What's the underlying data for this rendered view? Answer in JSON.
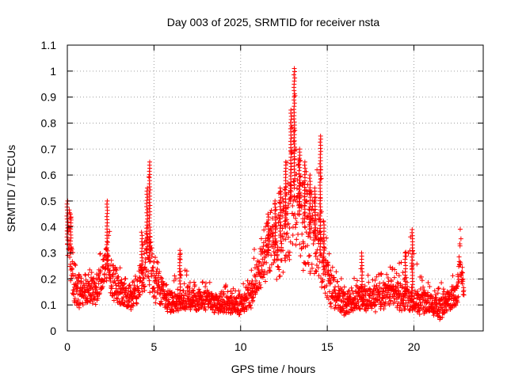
{
  "chart_data": {
    "type": "scatter",
    "title": "Day 003 of 2025, SRMTID for receiver nsta",
    "xlabel": "GPS time / hours",
    "ylabel": "SRMTID / TECUs",
    "xlim": [
      0,
      24
    ],
    "ylim": [
      0,
      1.1
    ],
    "xticks": [
      0,
      5,
      10,
      15,
      20
    ],
    "yticks": [
      0,
      0.1,
      0.2,
      0.3,
      0.4,
      0.5,
      0.6,
      0.7,
      0.8,
      0.9,
      1,
      1.1
    ],
    "xtick_labels": [
      "0",
      "5",
      "10",
      "15",
      "20"
    ],
    "ytick_labels": [
      "0",
      "0.1",
      "0.2",
      "0.3",
      "0.4",
      "0.5",
      "0.6",
      "0.7",
      "0.8",
      "0.9",
      "1",
      "1.1"
    ],
    "grid": true,
    "marker": "+",
    "color": "#ff0000",
    "series": [
      {
        "name": "SRMTID",
        "note": "approximate envelope read from the plot (time in hours, typical / min / max SRMTID in TECU)",
        "x": [
          0.0,
          0.1,
          0.2,
          0.3,
          0.5,
          0.8,
          1.0,
          1.3,
          1.6,
          2.0,
          2.3,
          2.5,
          2.8,
          3.2,
          3.6,
          4.0,
          4.3,
          4.6,
          4.75,
          5.0,
          5.3,
          5.6,
          6.0,
          6.5,
          7.0,
          7.5,
          8.0,
          8.5,
          9.0,
          9.5,
          10.0,
          10.3,
          10.6,
          11.0,
          11.3,
          11.6,
          12.0,
          12.3,
          12.6,
          12.9,
          13.1,
          13.4,
          13.7,
          14.0,
          14.3,
          14.6,
          14.8,
          15.2,
          15.6,
          16.0,
          16.5,
          17.0,
          17.5,
          18.0,
          18.5,
          19.0,
          19.5,
          19.9,
          20.3,
          20.8,
          21.2,
          21.5,
          21.8,
          22.2,
          22.5,
          22.65,
          22.8,
          22.9
        ],
        "y": [
          0.35,
          0.4,
          0.3,
          0.22,
          0.17,
          0.14,
          0.15,
          0.17,
          0.14,
          0.22,
          0.26,
          0.2,
          0.18,
          0.14,
          0.13,
          0.14,
          0.22,
          0.3,
          0.28,
          0.18,
          0.16,
          0.14,
          0.11,
          0.11,
          0.12,
          0.11,
          0.12,
          0.11,
          0.1,
          0.1,
          0.1,
          0.12,
          0.15,
          0.22,
          0.26,
          0.3,
          0.33,
          0.36,
          0.4,
          0.5,
          0.55,
          0.45,
          0.42,
          0.38,
          0.35,
          0.3,
          0.25,
          0.17,
          0.13,
          0.11,
          0.12,
          0.13,
          0.12,
          0.13,
          0.15,
          0.14,
          0.13,
          0.12,
          0.12,
          0.11,
          0.1,
          0.09,
          0.1,
          0.12,
          0.14,
          0.3,
          0.2,
          0.17
        ],
        "ymin": [
          0.25,
          0.3,
          0.15,
          0.1,
          0.06,
          0.07,
          0.08,
          0.1,
          0.08,
          0.15,
          0.18,
          0.12,
          0.1,
          0.08,
          0.08,
          0.09,
          0.12,
          0.16,
          0.15,
          0.1,
          0.09,
          0.08,
          0.06,
          0.07,
          0.08,
          0.07,
          0.08,
          0.07,
          0.06,
          0.06,
          0.05,
          0.07,
          0.08,
          0.14,
          0.17,
          0.2,
          0.2,
          0.15,
          0.2,
          0.25,
          0.3,
          0.25,
          0.22,
          0.2,
          0.18,
          0.15,
          0.12,
          0.08,
          0.06,
          0.06,
          0.07,
          0.07,
          0.06,
          0.07,
          0.09,
          0.08,
          0.07,
          0.06,
          0.06,
          0.06,
          0.05,
          0.04,
          0.05,
          0.07,
          0.08,
          0.2,
          0.15,
          0.12
        ],
        "ymax": [
          0.5,
          0.52,
          0.45,
          0.35,
          0.27,
          0.22,
          0.23,
          0.26,
          0.23,
          0.34,
          0.5,
          0.33,
          0.28,
          0.22,
          0.2,
          0.22,
          0.38,
          0.55,
          0.65,
          0.3,
          0.25,
          0.22,
          0.2,
          0.31,
          0.21,
          0.19,
          0.2,
          0.19,
          0.18,
          0.17,
          0.18,
          0.21,
          0.3,
          0.33,
          0.38,
          0.45,
          0.5,
          0.55,
          0.65,
          0.85,
          1.01,
          0.7,
          0.65,
          0.6,
          0.55,
          0.75,
          0.42,
          0.28,
          0.22,
          0.2,
          0.22,
          0.3,
          0.2,
          0.23,
          0.28,
          0.25,
          0.3,
          0.39,
          0.22,
          0.19,
          0.17,
          0.2,
          0.16,
          0.21,
          0.24,
          0.4,
          0.35,
          0.25
        ]
      }
    ]
  }
}
